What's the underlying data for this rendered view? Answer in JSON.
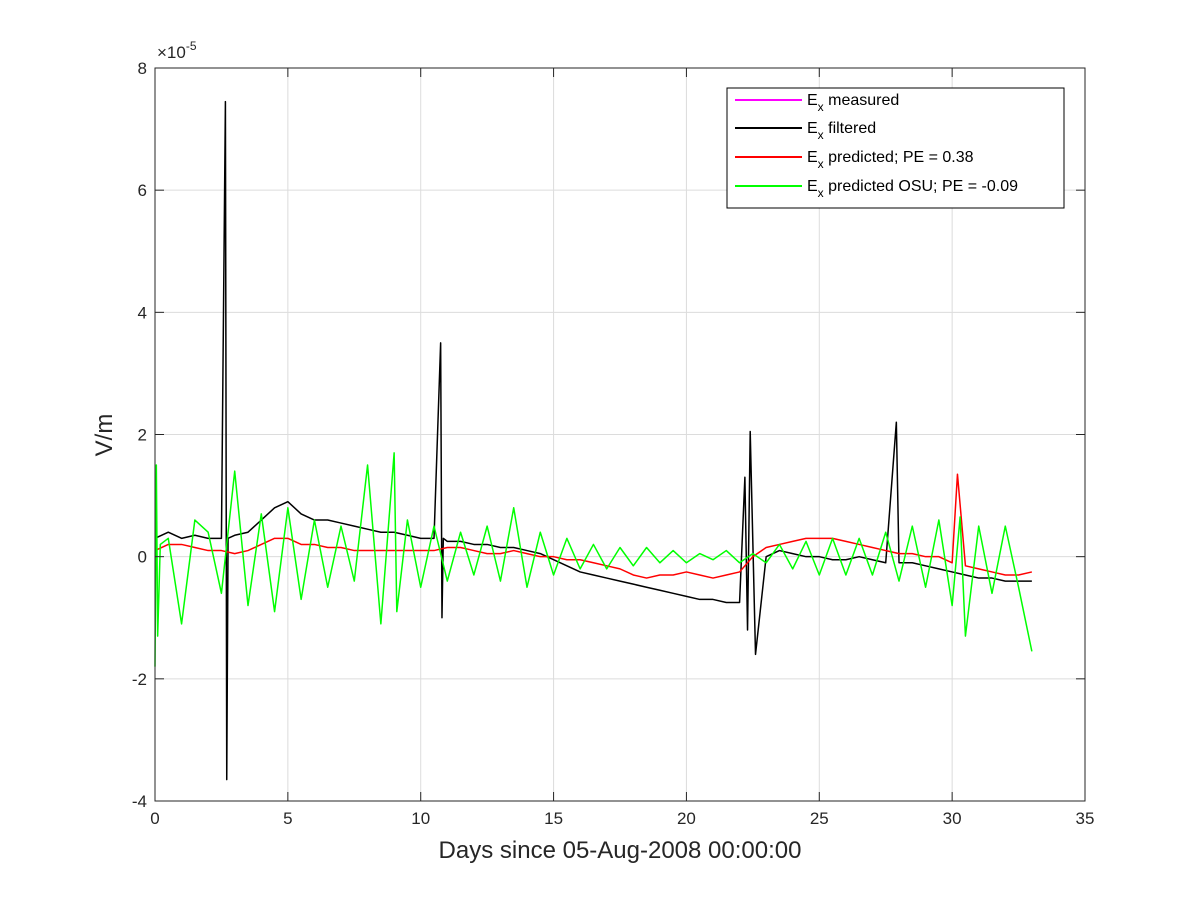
{
  "chart_data": {
    "type": "line",
    "title": "",
    "xlabel": "Days since 05-Aug-2008 00:00:00",
    "ylabel": "V/m",
    "xlim": [
      0,
      35
    ],
    "ylim": [
      -4,
      8
    ],
    "y_scale_exponent": "×10",
    "y_scale_power": "-5",
    "xticks": [
      "0",
      "5",
      "10",
      "15",
      "20",
      "25",
      "30",
      "35"
    ],
    "yticks": [
      "-4",
      "-2",
      "0",
      "2",
      "4",
      "6",
      "8"
    ],
    "grid": true,
    "legend_position": "top-right",
    "series": [
      {
        "name_main": "E",
        "name_sub": "x",
        "name_rest": " measured",
        "color": "#ff00ff",
        "x": [],
        "y": []
      },
      {
        "name_main": "E",
        "name_sub": "x",
        "name_rest": " filtered",
        "color": "#000000",
        "x": [
          0,
          0.5,
          1.0,
          1.5,
          2.0,
          2.5,
          2.65,
          2.7,
          2.75,
          3.0,
          3.5,
          4.0,
          4.5,
          5.0,
          5.5,
          6.0,
          6.5,
          7.0,
          7.5,
          8.0,
          8.5,
          9.0,
          9.5,
          10.0,
          10.5,
          10.75,
          10.8,
          10.85,
          11.0,
          11.5,
          12.0,
          12.5,
          13.0,
          13.5,
          14.0,
          14.5,
          15.0,
          15.5,
          16.0,
          16.5,
          17.0,
          17.5,
          18.0,
          18.5,
          19.0,
          19.5,
          20.0,
          20.5,
          21.0,
          21.5,
          22.0,
          22.2,
          22.3,
          22.4,
          22.6,
          23.0,
          23.5,
          24.0,
          24.5,
          25.0,
          25.5,
          26.0,
          26.5,
          27.0,
          27.5,
          27.9,
          28.0,
          28.5,
          29.0,
          29.5,
          30.0,
          30.5,
          31.0,
          31.5,
          32.0,
          32.5,
          33.0
        ],
        "y": [
          0.3,
          0.4,
          0.3,
          0.35,
          0.3,
          0.3,
          7.45,
          -3.65,
          0.3,
          0.35,
          0.4,
          0.6,
          0.8,
          0.9,
          0.7,
          0.6,
          0.6,
          0.55,
          0.5,
          0.45,
          0.4,
          0.4,
          0.35,
          0.3,
          0.3,
          3.5,
          -1.0,
          0.3,
          0.25,
          0.25,
          0.2,
          0.2,
          0.15,
          0.15,
          0.1,
          0.05,
          -0.05,
          -0.15,
          -0.25,
          -0.3,
          -0.35,
          -0.4,
          -0.45,
          -0.5,
          -0.55,
          -0.6,
          -0.65,
          -0.7,
          -0.7,
          -0.75,
          -0.75,
          1.3,
          -1.2,
          2.05,
          -1.6,
          0.0,
          0.1,
          0.05,
          0.0,
          0.0,
          -0.05,
          -0.05,
          0.0,
          -0.05,
          -0.1,
          2.2,
          -0.1,
          -0.1,
          -0.15,
          -0.2,
          -0.25,
          -0.3,
          -0.35,
          -0.35,
          -0.4,
          -0.4,
          -0.4
        ]
      },
      {
        "name_main": "E",
        "name_sub": "x",
        "name_rest": " predicted; PE = 0.38",
        "color": "#ff0000",
        "x": [
          0,
          0.5,
          1.0,
          1.5,
          2.0,
          2.5,
          3.0,
          3.5,
          4.0,
          4.5,
          5.0,
          5.5,
          6.0,
          6.5,
          7.0,
          7.5,
          8.0,
          8.5,
          9.0,
          9.5,
          10.0,
          10.5,
          11.0,
          11.5,
          12.0,
          12.5,
          13.0,
          13.5,
          14.0,
          14.5,
          15.0,
          15.5,
          16.0,
          16.5,
          17.0,
          17.5,
          18.0,
          18.5,
          19.0,
          19.5,
          20.0,
          20.5,
          21.0,
          21.5,
          22.0,
          22.5,
          23.0,
          23.5,
          24.0,
          24.5,
          25.0,
          25.5,
          26.0,
          26.5,
          27.0,
          27.5,
          28.0,
          28.5,
          29.0,
          29.5,
          30.0,
          30.2,
          30.5,
          31.0,
          31.5,
          32.0,
          32.5,
          33.0
        ],
        "y": [
          0.1,
          0.2,
          0.2,
          0.15,
          0.1,
          0.1,
          0.05,
          0.1,
          0.2,
          0.3,
          0.3,
          0.2,
          0.2,
          0.15,
          0.15,
          0.1,
          0.1,
          0.1,
          0.1,
          0.1,
          0.1,
          0.1,
          0.15,
          0.15,
          0.1,
          0.05,
          0.05,
          0.1,
          0.05,
          0.0,
          0.0,
          -0.05,
          -0.05,
          -0.1,
          -0.15,
          -0.2,
          -0.3,
          -0.35,
          -0.3,
          -0.3,
          -0.25,
          -0.3,
          -0.35,
          -0.3,
          -0.25,
          0.0,
          0.15,
          0.2,
          0.25,
          0.3,
          0.3,
          0.3,
          0.25,
          0.2,
          0.15,
          0.1,
          0.05,
          0.05,
          0.0,
          0.0,
          -0.1,
          1.35,
          -0.15,
          -0.2,
          -0.25,
          -0.3,
          -0.3,
          -0.25
        ]
      },
      {
        "name_main": "E",
        "name_sub": "x",
        "name_rest": " predicted OSU; PE = -0.09",
        "color": "#00ff00",
        "x": [
          0,
          0.05,
          0.1,
          0.2,
          0.5,
          1.0,
          1.5,
          2.0,
          2.5,
          3.0,
          3.5,
          4.0,
          4.5,
          5.0,
          5.5,
          6.0,
          6.5,
          7.0,
          7.5,
          8.0,
          8.5,
          9.0,
          9.1,
          9.5,
          10.0,
          10.5,
          11.0,
          11.5,
          12.0,
          12.5,
          13.0,
          13.5,
          14.0,
          14.5,
          15.0,
          15.5,
          16.0,
          16.5,
          17.0,
          17.5,
          18.0,
          18.5,
          19.0,
          19.5,
          20.0,
          20.5,
          21.0,
          21.5,
          22.0,
          22.5,
          23.0,
          23.5,
          24.0,
          24.5,
          25.0,
          25.5,
          26.0,
          26.5,
          27.0,
          27.5,
          28.0,
          28.5,
          29.0,
          29.5,
          30.0,
          30.3,
          30.5,
          31.0,
          31.5,
          32.0,
          32.5,
          33.0
        ],
        "y": [
          -1.8,
          1.5,
          -1.3,
          0.2,
          0.3,
          -1.1,
          0.6,
          0.4,
          -0.6,
          1.4,
          -0.8,
          0.7,
          -0.9,
          0.8,
          -0.7,
          0.6,
          -0.5,
          0.5,
          -0.4,
          1.5,
          -1.1,
          1.7,
          -0.9,
          0.6,
          -0.5,
          0.5,
          -0.4,
          0.4,
          -0.3,
          0.5,
          -0.4,
          0.8,
          -0.5,
          0.4,
          -0.3,
          0.3,
          -0.2,
          0.2,
          -0.2,
          0.15,
          -0.15,
          0.15,
          -0.1,
          0.1,
          -0.1,
          0.05,
          -0.05,
          0.1,
          -0.1,
          0.05,
          -0.1,
          0.2,
          -0.2,
          0.25,
          -0.3,
          0.3,
          -0.3,
          0.3,
          -0.3,
          0.4,
          -0.4,
          0.5,
          -0.5,
          0.6,
          -0.8,
          0.65,
          -1.3,
          0.5,
          -0.6,
          0.5,
          -0.5,
          -1.55
        ]
      }
    ]
  }
}
